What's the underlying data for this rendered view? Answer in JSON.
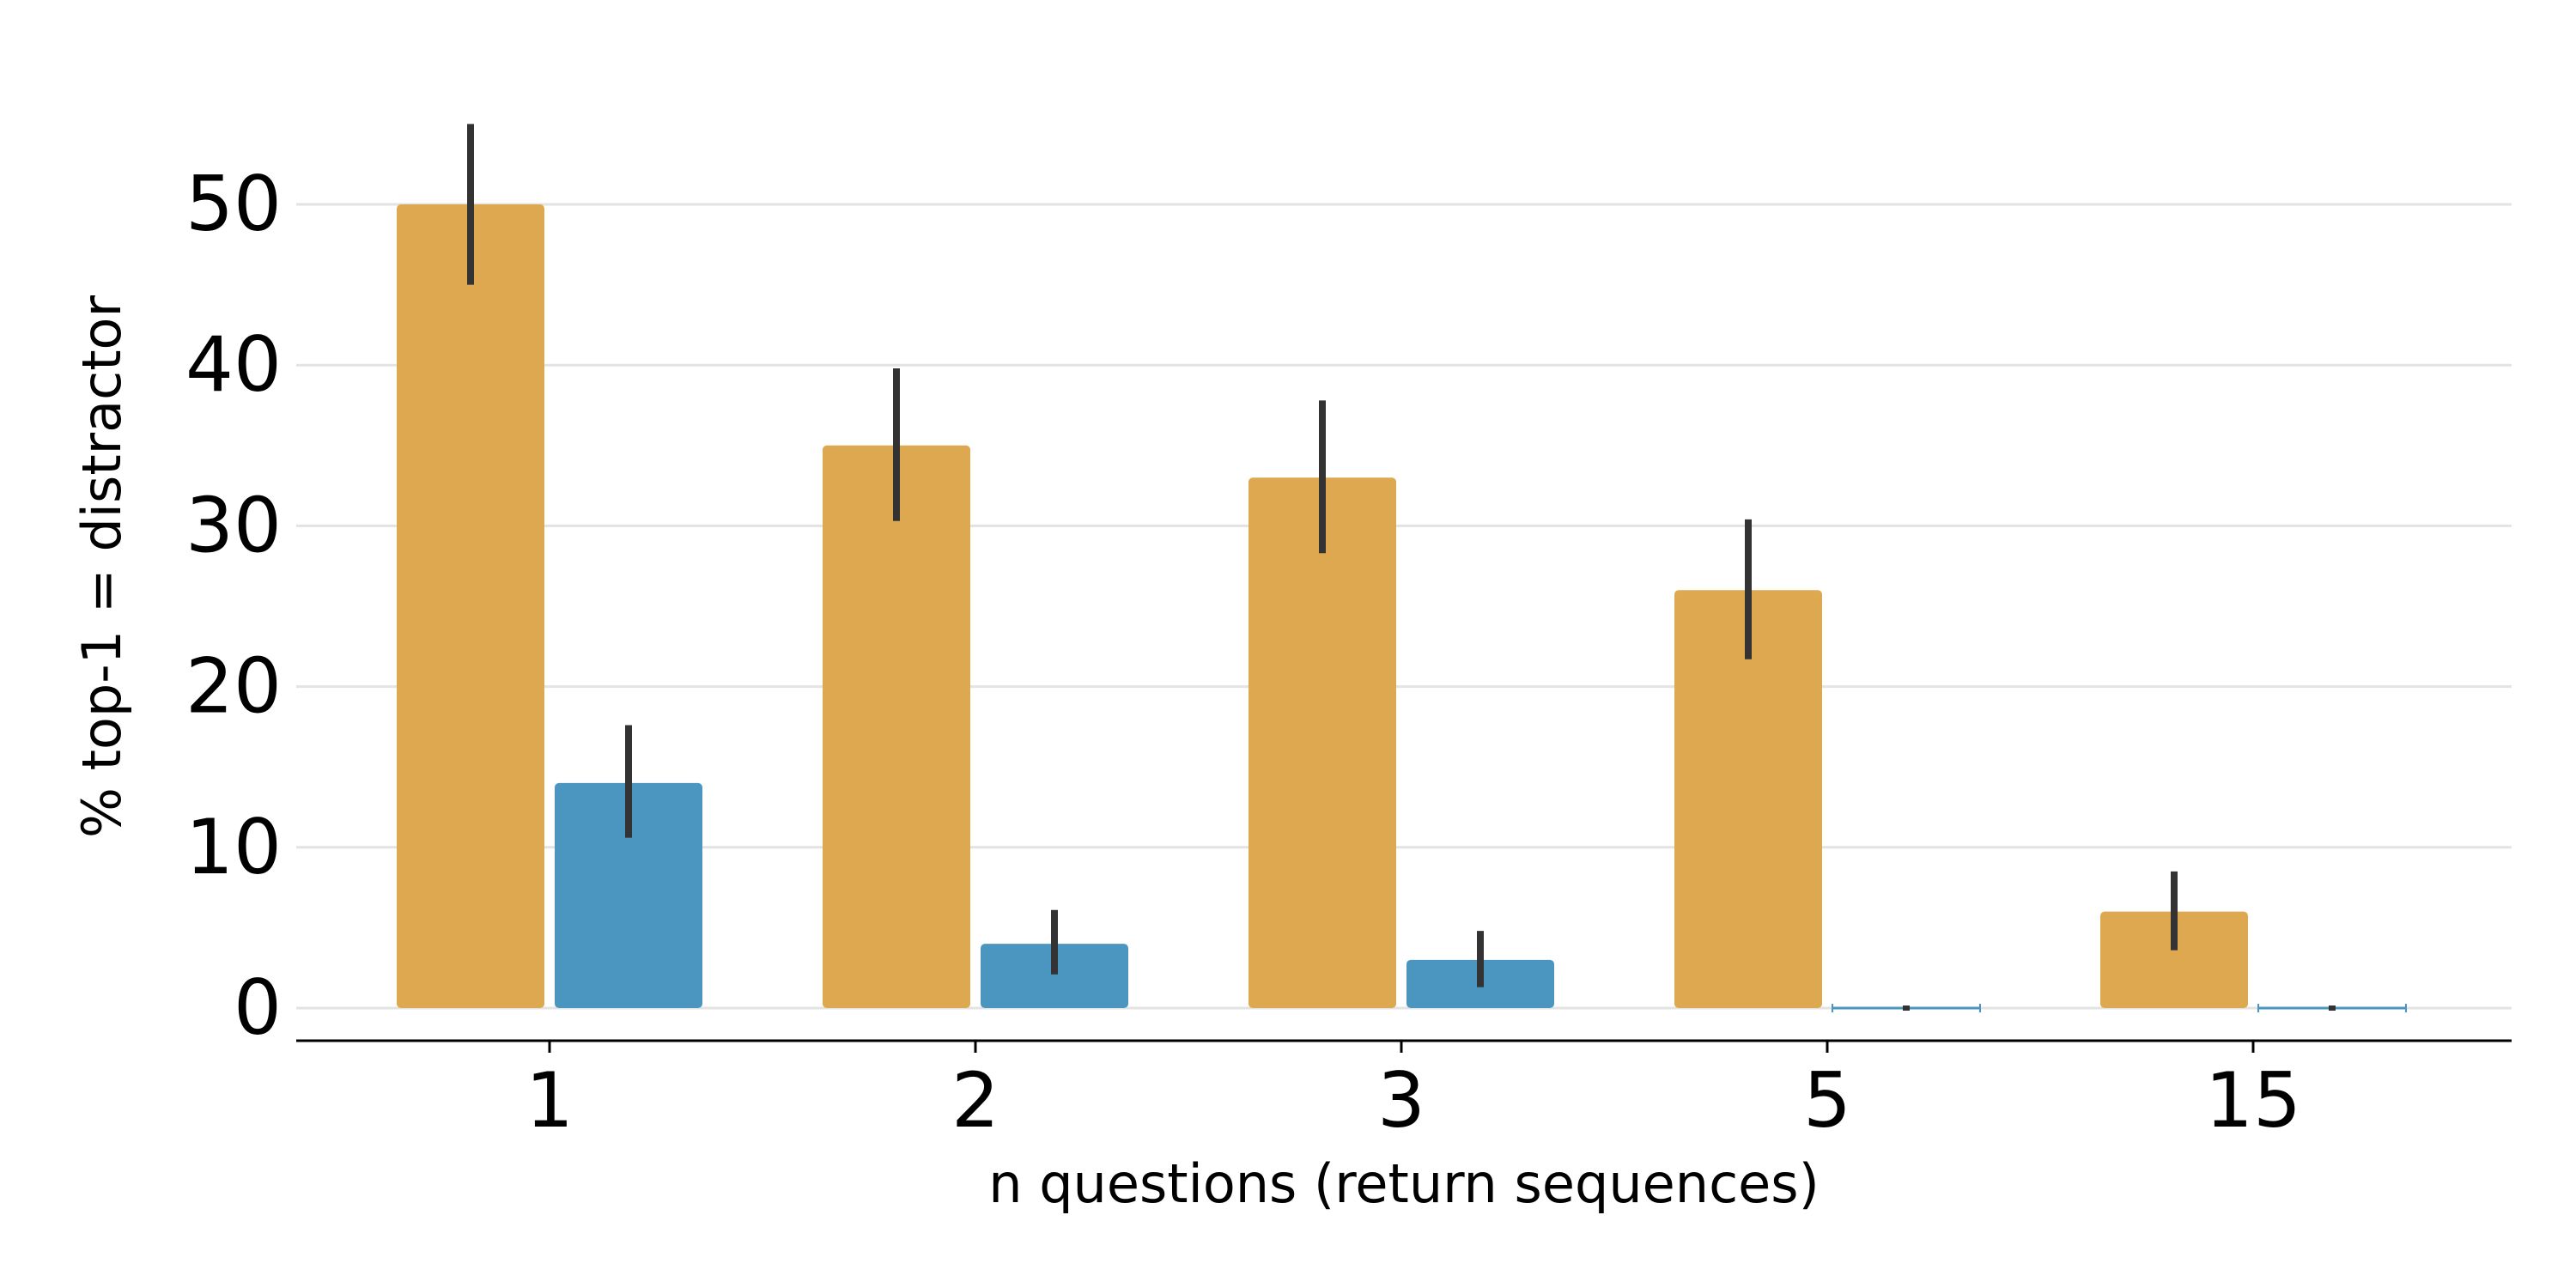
{
  "chart_data": {
    "type": "bar",
    "title": "",
    "xlabel": "n questions (return sequences)",
    "ylabel": "% top-1 = distractor",
    "categories": [
      "1",
      "2",
      "3",
      "5",
      "15"
    ],
    "series": [
      {
        "color": "#dea850",
        "values": [
          50,
          35,
          33,
          26,
          6
        ],
        "error": [
          [
            45,
            55
          ],
          [
            30.3,
            39.8
          ],
          [
            28.3,
            37.8
          ],
          [
            21.7,
            30.4
          ],
          [
            3.6,
            8.5
          ]
        ]
      },
      {
        "color": "#4b96c1",
        "values": [
          14,
          4,
          3,
          0,
          0
        ],
        "error": [
          [
            10.6,
            17.6
          ],
          [
            2.1,
            6.1
          ],
          [
            1.3,
            4.8
          ],
          [
            0,
            0
          ],
          [
            0,
            0
          ]
        ]
      }
    ],
    "ylim": [
      -2,
      57
    ],
    "yticks": [
      0,
      10,
      20,
      30,
      40,
      50
    ],
    "grid": "horizontal",
    "legend": "none"
  }
}
